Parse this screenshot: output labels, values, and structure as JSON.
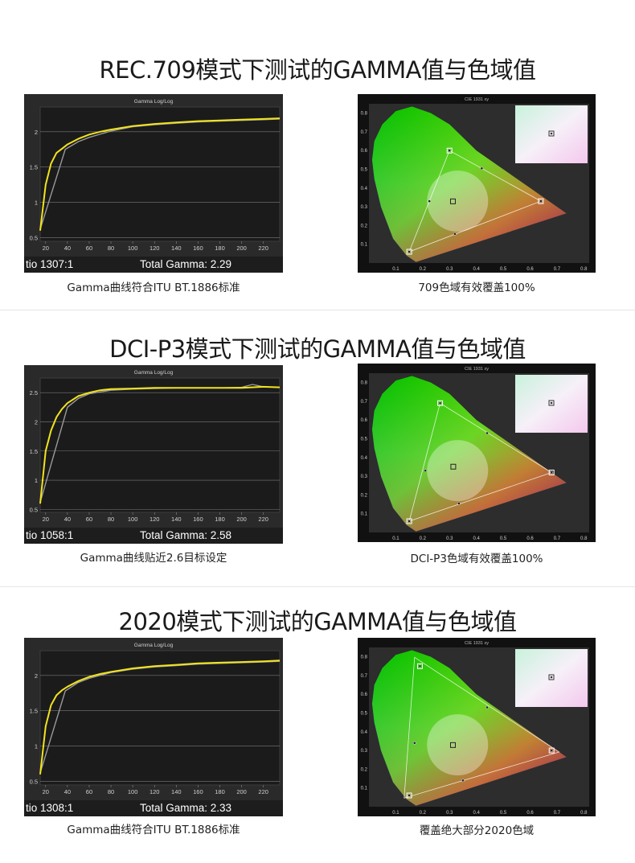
{
  "sections": [
    {
      "title": "REC.709模式下测试的GAMMA值与色域值",
      "gamma_caption": "Gamma曲线符合ITU BT.1886标准",
      "gamut_caption": "709色域有效覆盖100%",
      "ratio_label": "tio  1307:1",
      "total_gamma_label": "Total Gamma: 2.29"
    },
    {
      "title": "DCI-P3模式下测试的GAMMA值与色域值",
      "gamma_caption": "Gamma曲线贴近2.6目标设定",
      "gamut_caption": "DCI-P3色域有效覆盖100%",
      "ratio_label": "tio  1058:1",
      "total_gamma_label": "Total Gamma: 2.58"
    },
    {
      "title": "2020模式下测试的GAMMA值与色域值",
      "gamma_caption": "Gamma曲线符合ITU BT.1886标准",
      "gamut_caption": "覆盖绝大部分2020色域",
      "ratio_label": "tio  1308:1",
      "total_gamma_label": "Total Gamma: 2.33"
    }
  ],
  "chart_data": [
    {
      "type": "line",
      "title": "Gamma Log/Log",
      "x_ticks": [
        20,
        40,
        60,
        80,
        100,
        120,
        140,
        160,
        180,
        200,
        220
      ],
      "y_ticks": [
        "0.5",
        "1",
        "1.5",
        "2"
      ],
      "xlim": [
        15,
        235
      ],
      "ylim": [
        0.45,
        2.35
      ],
      "grid": true,
      "series": [
        {
          "color": "#f2e41c",
          "x": [
            15,
            20,
            25,
            30,
            35,
            40,
            50,
            60,
            70,
            80,
            100,
            120,
            140,
            160,
            180,
            200,
            220,
            235
          ],
          "values": [
            0.6,
            1.25,
            1.55,
            1.7,
            1.76,
            1.82,
            1.9,
            1.96,
            2.0,
            2.03,
            2.08,
            2.11,
            2.13,
            2.15,
            2.16,
            2.17,
            2.18,
            2.19
          ]
        },
        {
          "color": "#9a9a9a",
          "x": [
            15,
            38,
            50,
            60,
            80,
            100,
            120,
            140,
            160,
            180,
            200,
            220,
            235
          ],
          "values": [
            0.62,
            1.75,
            1.86,
            1.92,
            2.01,
            2.07,
            2.1,
            2.12,
            2.14,
            2.15,
            2.16,
            2.17,
            2.18
          ]
        }
      ]
    },
    {
      "type": "scatter",
      "title": "CIE 1931 xy",
      "x_ticks": [
        "0.1",
        "0.2",
        "0.3",
        "0.4",
        "0.5",
        "0.6",
        "0.7",
        "0.8"
      ],
      "y_ticks": [
        "0.1",
        "0.2",
        "0.3",
        "0.4",
        "0.5",
        "0.6",
        "0.7",
        "0.8"
      ],
      "xlim": [
        0,
        0.82
      ],
      "ylim": [
        0,
        0.85
      ],
      "target_gamut": [
        [
          0.64,
          0.33
        ],
        [
          0.3,
          0.6
        ],
        [
          0.15,
          0.06
        ]
      ],
      "white_point": [
        0.3127,
        0.329
      ],
      "measured": [
        [
          0.64,
          0.33
        ],
        [
          0.3,
          0.6
        ],
        [
          0.15,
          0.06
        ],
        [
          0.225,
          0.33
        ],
        [
          0.42,
          0.505
        ],
        [
          0.32,
          0.155
        ]
      ]
    },
    {
      "type": "line",
      "title": "Gamma Log/Log",
      "x_ticks": [
        20,
        40,
        60,
        80,
        100,
        120,
        140,
        160,
        180,
        200,
        220
      ],
      "y_ticks": [
        "0.5",
        "1",
        "1.5",
        "2",
        "2.5"
      ],
      "xlim": [
        15,
        235
      ],
      "ylim": [
        0.45,
        2.75
      ],
      "grid": true,
      "series": [
        {
          "color": "#f2e41c",
          "x": [
            15,
            20,
            25,
            30,
            35,
            40,
            50,
            60,
            70,
            80,
            100,
            120,
            140,
            160,
            180,
            200,
            220,
            235
          ],
          "values": [
            0.6,
            1.5,
            1.85,
            2.08,
            2.22,
            2.32,
            2.44,
            2.5,
            2.54,
            2.56,
            2.57,
            2.58,
            2.58,
            2.58,
            2.58,
            2.58,
            2.6,
            2.59
          ]
        },
        {
          "color": "#9a9a9a",
          "x": [
            15,
            40,
            50,
            60,
            80,
            100,
            120,
            140,
            160,
            180,
            200,
            210,
            220,
            235
          ],
          "values": [
            0.62,
            2.25,
            2.4,
            2.48,
            2.54,
            2.56,
            2.57,
            2.58,
            2.58,
            2.58,
            2.59,
            2.64,
            2.6,
            2.59
          ]
        }
      ]
    },
    {
      "type": "scatter",
      "title": "CIE 1931 xy",
      "x_ticks": [
        "0.1",
        "0.2",
        "0.3",
        "0.4",
        "0.5",
        "0.6",
        "0.7",
        "0.8"
      ],
      "y_ticks": [
        "0.1",
        "0.2",
        "0.3",
        "0.4",
        "0.5",
        "0.6",
        "0.7",
        "0.8"
      ],
      "xlim": [
        0,
        0.82
      ],
      "ylim": [
        0,
        0.85
      ],
      "target_gamut": [
        [
          0.68,
          0.32
        ],
        [
          0.265,
          0.69
        ],
        [
          0.15,
          0.06
        ]
      ],
      "white_point": [
        0.314,
        0.351
      ],
      "measured": [
        [
          0.68,
          0.32
        ],
        [
          0.265,
          0.69
        ],
        [
          0.15,
          0.06
        ],
        [
          0.21,
          0.33
        ],
        [
          0.44,
          0.53
        ],
        [
          0.335,
          0.155
        ]
      ]
    },
    {
      "type": "line",
      "title": "Gamma Log/Log",
      "x_ticks": [
        20,
        40,
        60,
        80,
        100,
        120,
        140,
        160,
        180,
        200,
        220
      ],
      "y_ticks": [
        "0.5",
        "1",
        "1.5",
        "2"
      ],
      "xlim": [
        15,
        235
      ],
      "ylim": [
        0.45,
        2.35
      ],
      "grid": true,
      "series": [
        {
          "color": "#f2e41c",
          "x": [
            15,
            20,
            25,
            30,
            35,
            40,
            50,
            60,
            70,
            80,
            100,
            120,
            140,
            160,
            180,
            200,
            220,
            235
          ],
          "values": [
            0.6,
            1.28,
            1.58,
            1.72,
            1.79,
            1.84,
            1.92,
            1.98,
            2.02,
            2.05,
            2.1,
            2.13,
            2.15,
            2.17,
            2.18,
            2.19,
            2.2,
            2.21
          ]
        },
        {
          "color": "#9a9a9a",
          "x": [
            15,
            38,
            50,
            60,
            80,
            100,
            120,
            140,
            160,
            180,
            200,
            220,
            235
          ],
          "values": [
            0.62,
            1.78,
            1.9,
            1.96,
            2.04,
            2.09,
            2.12,
            2.14,
            2.16,
            2.17,
            2.18,
            2.19,
            2.2
          ]
        }
      ]
    },
    {
      "type": "scatter",
      "title": "CIE 1931 xy",
      "x_ticks": [
        "0.1",
        "0.2",
        "0.3",
        "0.4",
        "0.5",
        "0.6",
        "0.7",
        "0.8"
      ],
      "y_ticks": [
        "0.1",
        "0.2",
        "0.3",
        "0.4",
        "0.5",
        "0.6",
        "0.7",
        "0.8"
      ],
      "xlim": [
        0,
        0.82
      ],
      "ylim": [
        0,
        0.85
      ],
      "target_gamut": [
        [
          0.708,
          0.292
        ],
        [
          0.17,
          0.797
        ],
        [
          0.131,
          0.046
        ]
      ],
      "white_point": [
        0.3127,
        0.329
      ],
      "measured": [
        [
          0.68,
          0.3
        ],
        [
          0.19,
          0.75
        ],
        [
          0.15,
          0.06
        ],
        [
          0.17,
          0.34
        ],
        [
          0.44,
          0.53
        ],
        [
          0.35,
          0.14
        ]
      ]
    }
  ]
}
